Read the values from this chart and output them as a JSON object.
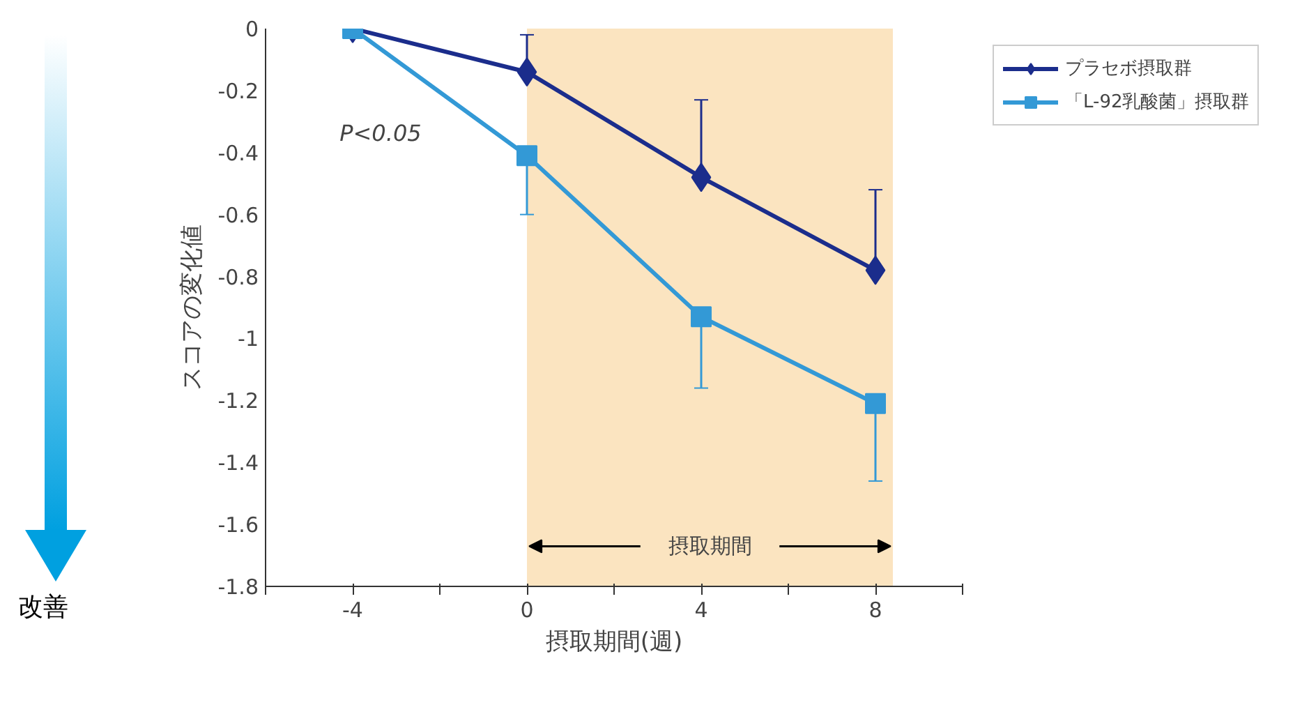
{
  "chart_data": {
    "type": "line",
    "xlabel": "摂取期間(週)",
    "ylabel": "スコアの変化値",
    "x": [
      -4,
      0,
      4,
      8
    ],
    "series": [
      {
        "name": "プラセボ摂取群",
        "color": "#1b2d8c",
        "marker": "diamond",
        "values": [
          0,
          -0.14,
          -0.48,
          -0.78
        ],
        "errors": [
          null,
          [
            -0.14,
            -0.02
          ],
          [
            -0.48,
            -0.23
          ],
          [
            -0.78,
            -0.52
          ]
        ]
      },
      {
        "name": "「L-92乳酸菌」摂取群",
        "color": "#3399d6",
        "marker": "square",
        "values": [
          0,
          -0.41,
          -0.93,
          -1.21
        ],
        "errors": [
          null,
          [
            -0.6,
            -0.41
          ],
          [
            -1.16,
            -0.93
          ],
          [
            -1.46,
            -1.21
          ]
        ]
      }
    ],
    "xlim": [
      -6,
      10
    ],
    "ylim": [
      -1.8,
      0
    ],
    "xticks": [
      {
        "value": -6,
        "label": null
      },
      -4,
      {
        "value": -2,
        "label": null
      },
      0,
      {
        "value": 2,
        "label": null
      },
      4,
      {
        "value": 6,
        "label": null
      },
      8,
      {
        "value": 10,
        "label": null
      }
    ],
    "yticks": [
      0,
      -0.2,
      -0.4,
      -0.6,
      -0.8,
      -1,
      -1.2,
      -1.4,
      -1.6,
      -1.8
    ],
    "bands": [
      {
        "axis": "x",
        "from": 0,
        "to": 8.4,
        "label": "摂取期間",
        "color": "#fbe4c0"
      }
    ],
    "annotations": [
      "P<0.05",
      "改善"
    ],
    "legend": "top right",
    "grid": false,
    "line_style": "solid"
  }
}
